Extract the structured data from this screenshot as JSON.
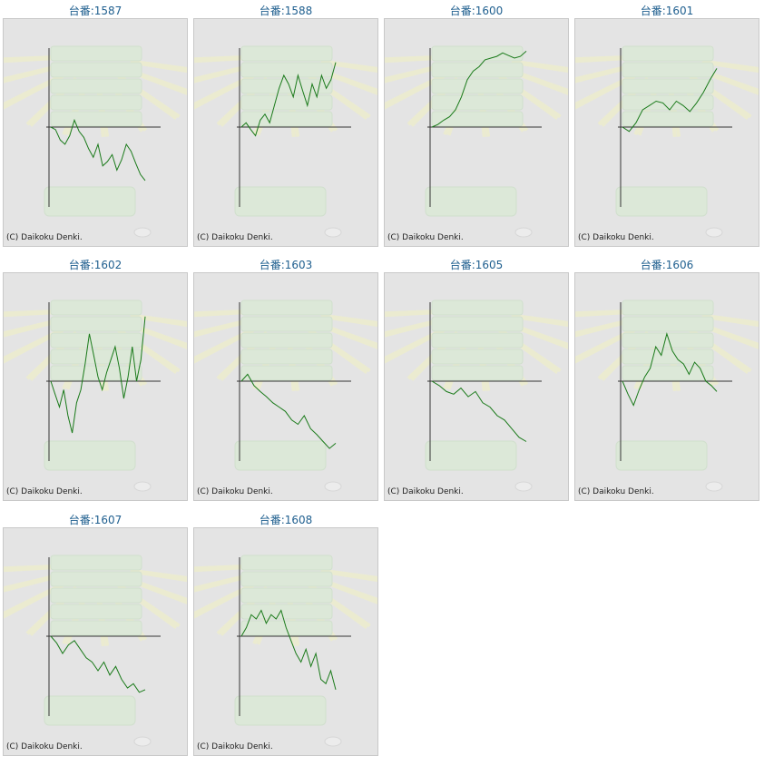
{
  "copyright": "(C) Daikoku Denki.",
  "colors": {
    "line": "#1a7a1a",
    "axis": "#333333",
    "panel": "#e4e4e4",
    "title": "#1f5f8f"
  },
  "chart_data": [
    {
      "type": "line",
      "title": "台番:1587",
      "y": [
        0,
        -3,
        -15,
        -20,
        -10,
        8,
        -5,
        -12,
        -25,
        -35,
        -20,
        -45,
        -40,
        -32,
        -50,
        -38,
        -20,
        -28,
        -42,
        -55,
        -62
      ]
    },
    {
      "type": "line",
      "title": "台番:1588",
      "y": [
        0,
        5,
        -3,
        -10,
        8,
        15,
        5,
        25,
        45,
        60,
        50,
        35,
        60,
        42,
        25,
        50,
        35,
        60,
        45,
        55,
        75
      ]
    },
    {
      "type": "line",
      "title": "台番:1600",
      "y": [
        0,
        3,
        8,
        12,
        20,
        35,
        55,
        65,
        70,
        78,
        80,
        82,
        86,
        83,
        80,
        82,
        88
      ]
    },
    {
      "type": "line",
      "title": "台番:1601",
      "y": [
        0,
        -5,
        5,
        20,
        25,
        30,
        28,
        20,
        30,
        25,
        18,
        28,
        40,
        55,
        68
      ]
    },
    {
      "type": "line",
      "title": "台番:1602",
      "y": [
        0,
        -15,
        -30,
        -10,
        -40,
        -60,
        -25,
        -10,
        20,
        55,
        30,
        5,
        -10,
        10,
        25,
        40,
        15,
        -20,
        5,
        40,
        0,
        25,
        75
      ]
    },
    {
      "type": "line",
      "title": "台番:1603",
      "y": [
        0,
        8,
        -5,
        -12,
        -18,
        -25,
        -30,
        -35,
        -45,
        -50,
        -40,
        -55,
        -62,
        -70,
        -78,
        -72
      ]
    },
    {
      "type": "line",
      "title": "台番:1605",
      "y": [
        0,
        -5,
        -12,
        -15,
        -8,
        -18,
        -12,
        -25,
        -30,
        -40,
        -45,
        -55,
        -65,
        -70
      ]
    },
    {
      "type": "line",
      "title": "台番:1606",
      "y": [
        0,
        -15,
        -28,
        -10,
        5,
        15,
        40,
        30,
        55,
        35,
        25,
        20,
        8,
        22,
        15,
        0,
        -5,
        -12
      ]
    },
    {
      "type": "line",
      "title": "台番:1607",
      "y": [
        0,
        -8,
        -20,
        -10,
        -5,
        -15,
        -25,
        -30,
        -40,
        -30,
        -45,
        -35,
        -50,
        -60,
        -55,
        -65,
        -62
      ]
    },
    {
      "type": "line",
      "title": "台番:1608",
      "y": [
        0,
        10,
        25,
        20,
        30,
        15,
        25,
        20,
        30,
        10,
        -5,
        -20,
        -30,
        -15,
        -35,
        -20,
        -50,
        -55,
        -40,
        -62
      ]
    }
  ]
}
